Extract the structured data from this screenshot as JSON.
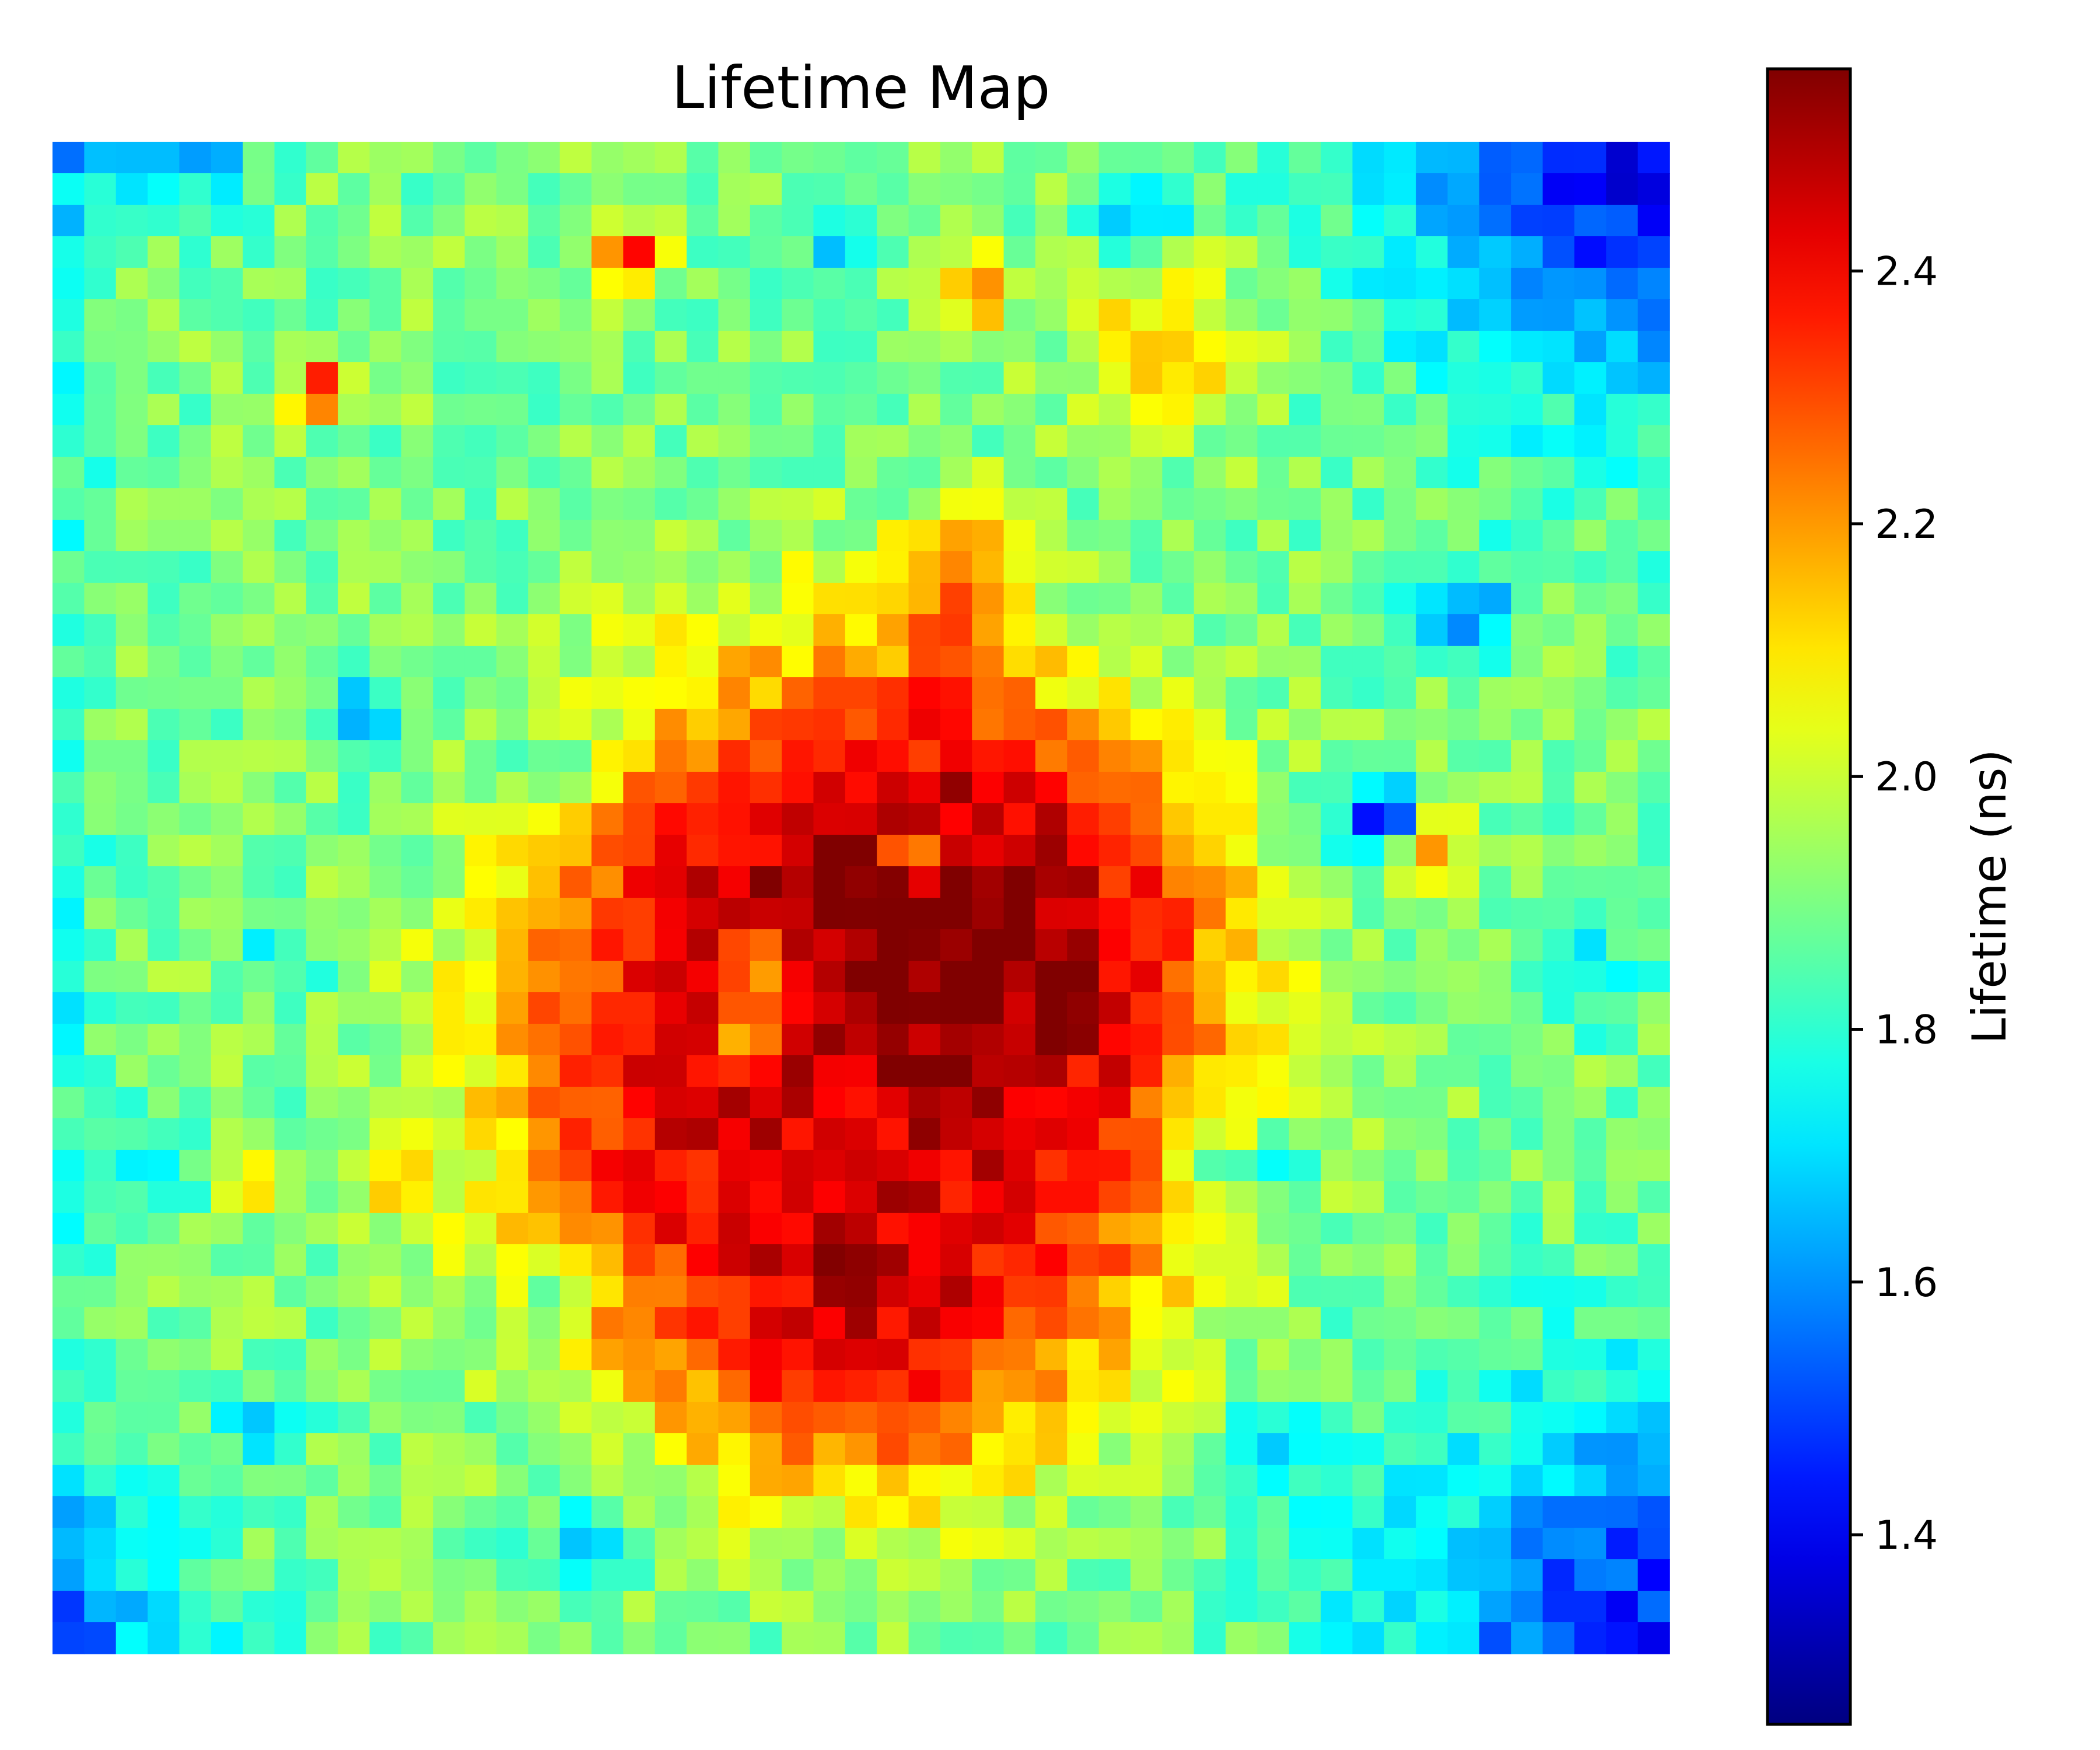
{
  "chart_data": {
    "type": "heatmap",
    "title": "Lifetime Map",
    "colorbar": {
      "label": "Lifetime (ns)",
      "range": [
        1.25,
        2.56
      ],
      "ticks": [
        "1.4",
        "1.6",
        "1.8",
        "2.0",
        "2.2",
        "2.4"
      ],
      "tick_values": [
        1.4,
        1.6,
        1.8,
        2.0,
        2.2,
        2.4
      ],
      "colormap": "jet"
    },
    "grid": {
      "rows": 48,
      "cols": 51
    },
    "background_level": 1.9,
    "field_components": [
      {
        "kind": "blob",
        "cx": 0.5,
        "cy": 0.6,
        "rx": 0.23,
        "ry": 0.27,
        "amp": 0.55
      },
      {
        "kind": "blob",
        "cx": 0.58,
        "cy": 0.5,
        "rx": 0.15,
        "ry": 0.12,
        "amp": 0.12
      },
      {
        "kind": "blob",
        "cx": 0.5,
        "cy": 0.82,
        "rx": 0.12,
        "ry": 0.1,
        "amp": 0.08
      },
      {
        "kind": "blob",
        "cx": 0.56,
        "cy": 0.3,
        "rx": 0.04,
        "ry": 0.07,
        "amp": 0.22
      },
      {
        "kind": "spot",
        "cx": 0.36,
        "cy": 0.075,
        "r": 0.018,
        "amp": 0.55
      },
      {
        "kind": "spot",
        "cx": 0.165,
        "cy": 0.165,
        "r": 0.018,
        "amp": 0.5
      },
      {
        "kind": "spot",
        "cx": 0.57,
        "cy": 0.1,
        "r": 0.025,
        "amp": 0.3
      },
      {
        "kind": "spot",
        "cx": 0.69,
        "cy": 0.13,
        "r": 0.06,
        "amp": 0.22
      },
      {
        "kind": "spot",
        "cx": 0.82,
        "cy": 0.45,
        "r": 0.025,
        "amp": -0.55
      },
      {
        "kind": "spot",
        "cx": 0.85,
        "cy": 0.47,
        "r": 0.025,
        "amp": 0.35
      },
      {
        "kind": "spot",
        "cx": 0.87,
        "cy": 0.31,
        "r": 0.035,
        "amp": -0.3
      },
      {
        "kind": "spot",
        "cx": 0.67,
        "cy": 0.05,
        "r": 0.03,
        "amp": -0.25
      },
      {
        "kind": "spot",
        "cx": 0.48,
        "cy": 0.06,
        "r": 0.025,
        "amp": -0.22
      },
      {
        "kind": "spot",
        "cx": 0.09,
        "cy": 0.005,
        "r": 0.04,
        "amp": -0.22
      },
      {
        "kind": "spot",
        "cx": 0.19,
        "cy": 0.38,
        "r": 0.03,
        "amp": -0.22
      },
      {
        "kind": "spot",
        "cx": 0.315,
        "cy": 0.415,
        "r": 0.03,
        "amp": -0.25
      },
      {
        "kind": "spot",
        "cx": 0.76,
        "cy": 0.86,
        "r": 0.03,
        "amp": -0.25
      },
      {
        "kind": "spot",
        "cx": 0.33,
        "cy": 0.92,
        "r": 0.03,
        "amp": -0.22
      },
      {
        "kind": "spot",
        "cx": 0.13,
        "cy": 0.85,
        "r": 0.025,
        "amp": -0.2
      },
      {
        "kind": "spot",
        "cx": 0.07,
        "cy": 0.67,
        "r": 0.025,
        "amp": -0.18
      },
      {
        "kind": "spot",
        "cx": 0.95,
        "cy": 0.55,
        "r": 0.035,
        "amp": -0.18
      },
      {
        "kind": "spot",
        "cx": 0.14,
        "cy": 0.54,
        "r": 0.025,
        "amp": -0.15
      },
      {
        "kind": "spot",
        "cx": 0.44,
        "cy": 0.55,
        "r": 0.025,
        "amp": -0.3
      },
      {
        "kind": "spot",
        "cx": 0.43,
        "cy": 0.59,
        "r": 0.02,
        "amp": -0.35
      },
      {
        "kind": "spot",
        "cx": 0.53,
        "cy": 0.47,
        "r": 0.02,
        "amp": -0.3
      },
      {
        "kind": "spot",
        "cx": 0.71,
        "cy": 0.68,
        "r": 0.025,
        "amp": -0.3
      },
      {
        "kind": "spot",
        "cx": 0.31,
        "cy": 0.76,
        "r": 0.02,
        "amp": -0.3
      },
      {
        "kind": "spot",
        "cx": 0.76,
        "cy": 0.67,
        "r": 0.02,
        "amp": -0.25
      },
      {
        "kind": "spot",
        "cx": 0.125,
        "cy": 0.69,
        "r": 0.02,
        "amp": 0.25
      },
      {
        "kind": "spot",
        "cx": 0.21,
        "cy": 0.69,
        "r": 0.02,
        "amp": 0.18
      },
      {
        "kind": "corner",
        "cx": 1.0,
        "cy": 0.0,
        "r": 0.17,
        "amp": -0.5
      },
      {
        "kind": "corner",
        "cx": 1.0,
        "cy": 1.0,
        "r": 0.17,
        "amp": -0.45
      },
      {
        "kind": "corner",
        "cx": 0.0,
        "cy": 1.0,
        "r": 0.1,
        "amp": -0.3
      },
      {
        "kind": "corner",
        "cx": 0.0,
        "cy": 0.0,
        "r": 0.06,
        "amp": -0.15
      },
      {
        "kind": "edge",
        "side": "left",
        "width": 0.03,
        "amp": -0.12
      }
    ],
    "noise_amplitude": 0.09
  }
}
